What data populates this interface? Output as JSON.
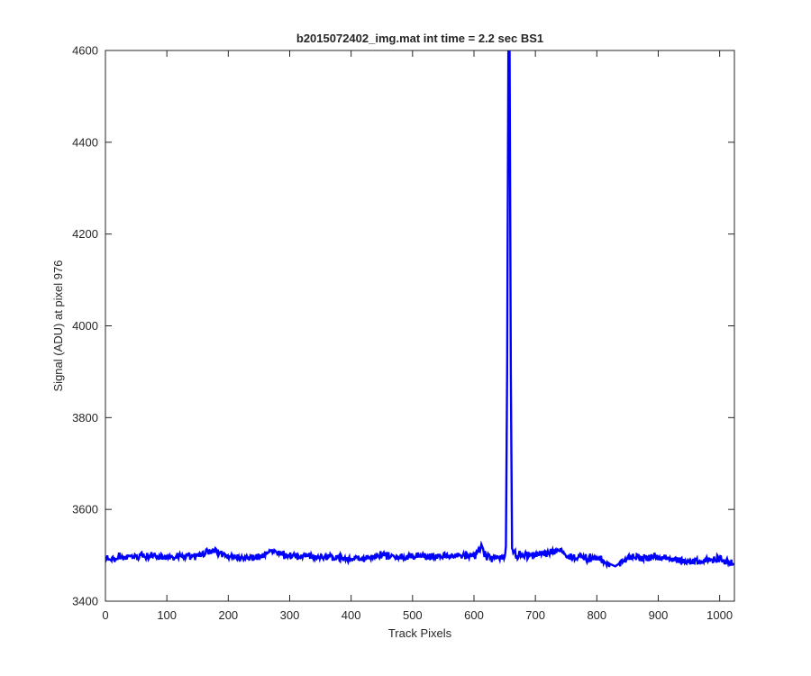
{
  "chart_data": {
    "type": "line",
    "title": "b2015072402_img.mat int time = 2.2 sec   BS1",
    "xlabel": "Track Pixels",
    "ylabel": "Signal (ADU) at pixel 976",
    "xlim": [
      0,
      1024
    ],
    "ylim": [
      3400,
      4600
    ],
    "xticks": [
      0,
      100,
      200,
      300,
      400,
      500,
      600,
      700,
      800,
      900,
      1000
    ],
    "yticks": [
      3400,
      3600,
      3800,
      4000,
      4200,
      4400,
      4600
    ],
    "xtick_labels": [
      "0",
      "100",
      "200",
      "300",
      "400",
      "500",
      "600",
      "700",
      "800",
      "900",
      "1000"
    ],
    "ytick_labels": [
      "3400",
      "3600",
      "3800",
      "4000",
      "4200",
      "4400",
      "4600"
    ],
    "grid": false,
    "box": true,
    "series": [
      {
        "color": "#0000ff",
        "baseline": 3497,
        "noise_amplitude": 8,
        "x": [
          0,
          50,
          100,
          150,
          176,
          200,
          250,
          268,
          300,
          350,
          400,
          450,
          500,
          550,
          600,
          610,
          612,
          620,
          640,
          650,
          652,
          654,
          656,
          658,
          660,
          662,
          664,
          670,
          700,
          743,
          750,
          800,
          830,
          850,
          900,
          950,
          1000,
          1024
        ],
        "y": [
          3493,
          3498,
          3496,
          3500,
          3512,
          3497,
          3495,
          3509,
          3498,
          3497,
          3492,
          3499,
          3497,
          3498,
          3499,
          3510,
          3524,
          3496,
          3495,
          3497,
          3520,
          3900,
          4600,
          4600,
          3900,
          3515,
          3505,
          3500,
          3501,
          3511,
          3497,
          3494,
          3476,
          3495,
          3496,
          3486,
          3492,
          3480
        ]
      }
    ]
  }
}
